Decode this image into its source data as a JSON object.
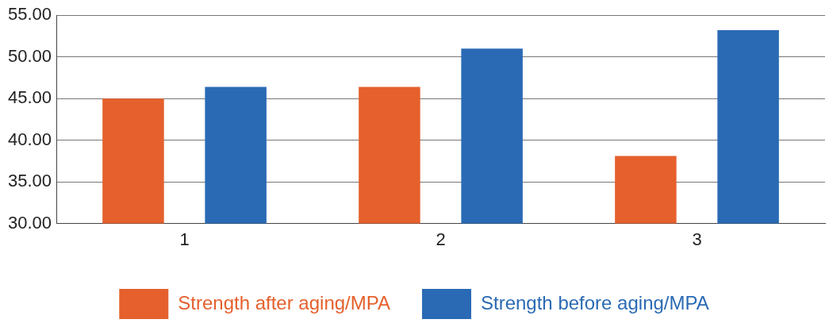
{
  "chart_data": {
    "type": "bar",
    "categories": [
      "1",
      "2",
      "3"
    ],
    "series": [
      {
        "name": "Strength after aging/MPA",
        "color": "#e5602c",
        "values": [
          45.0,
          46.4,
          38.1
        ]
      },
      {
        "name": "Strength before aging/MPA",
        "color": "#2a6ab4",
        "values": [
          46.4,
          51.0,
          53.2
        ]
      }
    ],
    "ylim": [
      30,
      55
    ],
    "yticks": [
      {
        "value": 30,
        "label": "30.00"
      },
      {
        "value": 35,
        "label": "35.00"
      },
      {
        "value": 40,
        "label": "40.00"
      },
      {
        "value": 45,
        "label": "45.00"
      },
      {
        "value": 50,
        "label": "50.00"
      },
      {
        "value": 55,
        "label": "55.00"
      }
    ],
    "grid": "y",
    "legend": "bottom"
  }
}
